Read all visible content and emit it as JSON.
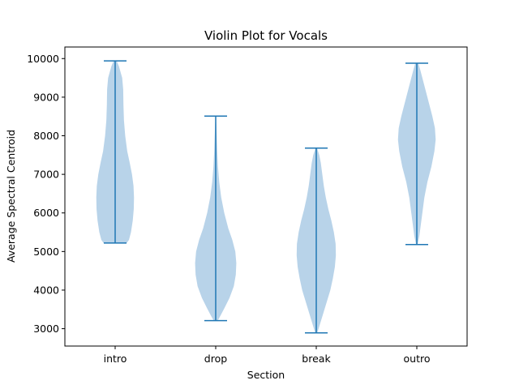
{
  "chart_data": {
    "type": "violin",
    "title": "Violin Plot for Vocals",
    "xlabel": "Section",
    "ylabel": "Average Spectral Centroid",
    "categories": [
      "intro",
      "drop",
      "break",
      "outro"
    ],
    "ylim": [
      2550,
      10300
    ],
    "yticks": [
      3000,
      4000,
      5000,
      6000,
      7000,
      8000,
      9000,
      10000
    ],
    "grid": false,
    "colors": {
      "body": "#a6c8e3",
      "line": "#1f77b4"
    },
    "violins": [
      {
        "name": "intro",
        "min": 5220,
        "max": 9940,
        "profile": [
          [
            5220,
            0.46
          ],
          [
            5300,
            0.55
          ],
          [
            5500,
            0.63
          ],
          [
            5800,
            0.7
          ],
          [
            6100,
            0.74
          ],
          [
            6400,
            0.75
          ],
          [
            6700,
            0.73
          ],
          [
            7000,
            0.67
          ],
          [
            7300,
            0.58
          ],
          [
            7600,
            0.48
          ],
          [
            8000,
            0.4
          ],
          [
            8400,
            0.35
          ],
          [
            8800,
            0.33
          ],
          [
            9200,
            0.32
          ],
          [
            9500,
            0.28
          ],
          [
            9800,
            0.15
          ],
          [
            9940,
            0.06
          ]
        ]
      },
      {
        "name": "drop",
        "min": 3210,
        "max": 8510,
        "profile": [
          [
            3210,
            0.08
          ],
          [
            3350,
            0.2
          ],
          [
            3550,
            0.36
          ],
          [
            3800,
            0.55
          ],
          [
            4100,
            0.72
          ],
          [
            4400,
            0.8
          ],
          [
            4700,
            0.82
          ],
          [
            5000,
            0.78
          ],
          [
            5300,
            0.66
          ],
          [
            5600,
            0.5
          ],
          [
            6000,
            0.34
          ],
          [
            6400,
            0.22
          ],
          [
            6800,
            0.14
          ],
          [
            7200,
            0.09
          ],
          [
            7600,
            0.06
          ],
          [
            8000,
            0.04
          ],
          [
            8510,
            0.01
          ]
        ]
      },
      {
        "name": "break",
        "min": 2890,
        "max": 7680,
        "profile": [
          [
            2890,
            0.04
          ],
          [
            3100,
            0.14
          ],
          [
            3400,
            0.28
          ],
          [
            3700,
            0.42
          ],
          [
            4000,
            0.56
          ],
          [
            4300,
            0.66
          ],
          [
            4600,
            0.74
          ],
          [
            4900,
            0.78
          ],
          [
            5200,
            0.77
          ],
          [
            5500,
            0.7
          ],
          [
            5800,
            0.6
          ],
          [
            6100,
            0.48
          ],
          [
            6400,
            0.38
          ],
          [
            6700,
            0.3
          ],
          [
            7000,
            0.24
          ],
          [
            7300,
            0.18
          ],
          [
            7500,
            0.12
          ],
          [
            7680,
            0.03
          ]
        ]
      },
      {
        "name": "outro",
        "min": 5180,
        "max": 9880,
        "profile": [
          [
            5180,
            0.03
          ],
          [
            5400,
            0.1
          ],
          [
            5700,
            0.16
          ],
          [
            6000,
            0.22
          ],
          [
            6400,
            0.3
          ],
          [
            6800,
            0.42
          ],
          [
            7200,
            0.58
          ],
          [
            7600,
            0.7
          ],
          [
            7900,
            0.75
          ],
          [
            8200,
            0.72
          ],
          [
            8500,
            0.62
          ],
          [
            8800,
            0.5
          ],
          [
            9100,
            0.38
          ],
          [
            9400,
            0.26
          ],
          [
            9700,
            0.14
          ],
          [
            9880,
            0.06
          ]
        ]
      }
    ]
  }
}
